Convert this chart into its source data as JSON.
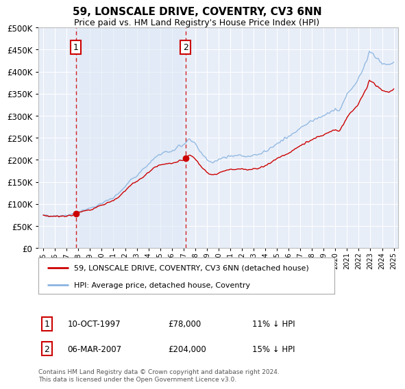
{
  "title": "59, LONSCALE DRIVE, COVENTRY, CV3 6NN",
  "subtitle": "Price paid vs. HM Land Registry's House Price Index (HPI)",
  "plot_bg_color": "#e8eef8",
  "hpi_color": "#8ab4e0",
  "price_color": "#cc0000",
  "ylim": [
    0,
    500000
  ],
  "yticks": [
    0,
    50000,
    100000,
    150000,
    200000,
    250000,
    300000,
    350000,
    400000,
    450000,
    500000
  ],
  "xlim_start": 1994.6,
  "xlim_end": 2025.4,
  "sale1_date": 1997.78,
  "sale1_price": 78000,
  "sale1_label": "1",
  "sale2_date": 2007.17,
  "sale2_price": 204000,
  "sale2_label": "2",
  "legend_line1": "59, LONSCALE DRIVE, COVENTRY, CV3 6NN (detached house)",
  "legend_line2": "HPI: Average price, detached house, Coventry",
  "annotation1_date": "10-OCT-1997",
  "annotation1_price": "£78,000",
  "annotation1_hpi": "11% ↓ HPI",
  "annotation2_date": "06-MAR-2007",
  "annotation2_price": "£204,000",
  "annotation2_hpi": "15% ↓ HPI",
  "footer": "Contains HM Land Registry data © Crown copyright and database right 2024.\nThis data is licensed under the Open Government Licence v3.0."
}
